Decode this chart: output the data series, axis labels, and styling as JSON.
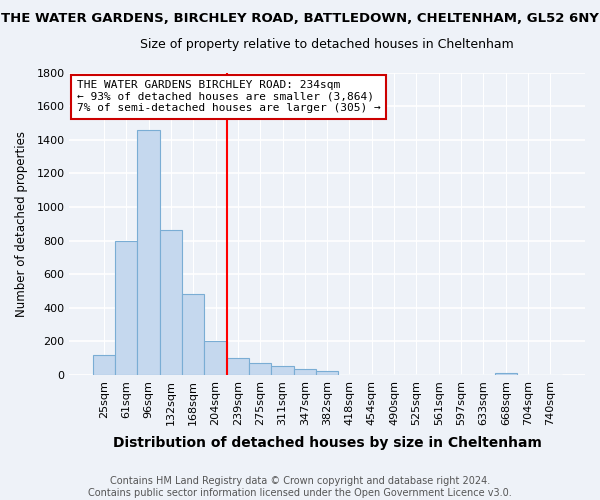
{
  "title": "THE WATER GARDENS, BIRCHLEY ROAD, BATTLEDOWN, CHELTENHAM, GL52 6NY",
  "subtitle": "Size of property relative to detached houses in Cheltenham",
  "xlabel": "Distribution of detached houses by size in Cheltenham",
  "ylabel": "Number of detached properties",
  "footer1": "Contains HM Land Registry data © Crown copyright and database right 2024.",
  "footer2": "Contains public sector information licensed under the Open Government Licence v3.0.",
  "categories": [
    "25sqm",
    "61sqm",
    "96sqm",
    "132sqm",
    "168sqm",
    "204sqm",
    "239sqm",
    "275sqm",
    "311sqm",
    "347sqm",
    "382sqm",
    "418sqm",
    "454sqm",
    "490sqm",
    "525sqm",
    "561sqm",
    "597sqm",
    "633sqm",
    "668sqm",
    "704sqm",
    "740sqm"
  ],
  "values": [
    120,
    800,
    1460,
    860,
    480,
    200,
    100,
    70,
    55,
    35,
    25,
    0,
    0,
    0,
    0,
    0,
    0,
    0,
    15,
    0,
    0
  ],
  "bar_color": "#c5d8ee",
  "bar_edge_color": "#7aadd4",
  "red_line_index": 6,
  "ylim": [
    0,
    1800
  ],
  "yticks": [
    0,
    200,
    400,
    600,
    800,
    1000,
    1200,
    1400,
    1600,
    1800
  ],
  "annotation_title": "THE WATER GARDENS BIRCHLEY ROAD: 234sqm",
  "annotation_line1": "← 93% of detached houses are smaller (3,864)",
  "annotation_line2": "7% of semi-detached houses are larger (305) →",
  "annotation_box_edge": "#cc0000",
  "background_color": "#eef2f8",
  "grid_color": "#ffffff",
  "title_fontsize": 9.5,
  "subtitle_fontsize": 9,
  "ylabel_fontsize": 8.5,
  "xlabel_fontsize": 10,
  "tick_fontsize": 8,
  "footer_fontsize": 7,
  "annot_fontsize": 8
}
